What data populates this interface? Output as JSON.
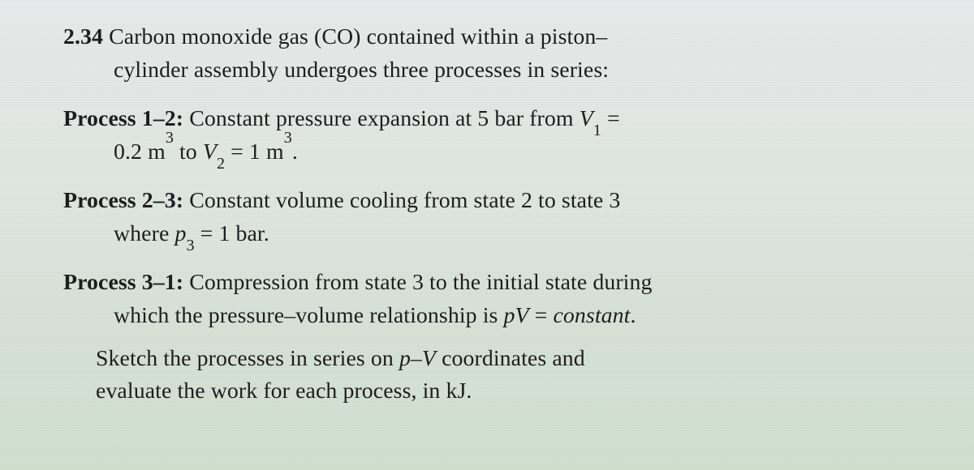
{
  "problem_number": "2.34",
  "intro_a": "Carbon monoxide gas (CO) contained within a piston–",
  "intro_b": "cylinder assembly undergoes three processes in series:",
  "p12": {
    "label": "Process 1–2:",
    "line1_a": "Constant pressure expansion at 5 bar from ",
    "V1_sym": "V",
    "V1_sub": "1",
    "eq": " = ",
    "line2_a": "0.2 m",
    "cube": "3",
    "to": " to ",
    "V2_sym": "V",
    "V2_sub": "2",
    "eq2": " = 1 m",
    "period": "."
  },
  "p23": {
    "label": "Process 2–3:",
    "line1": "Constant volume cooling from state 2 to state 3",
    "line2_a": "where ",
    "p3_sym": "p",
    "p3_sub": "3",
    "eq": " = 1 bar."
  },
  "p31": {
    "label": "Process 3–1:",
    "line1": "Compression from state 3 to the initial state during",
    "line2_a": "which the pressure–volume relationship is ",
    "pV": "pV",
    "eq": " = ",
    "const": "constant",
    "period": "."
  },
  "closing": {
    "line1_a": "Sketch the processes in series on ",
    "pv_ital": "p–V",
    "line1_b": " coordinates and",
    "line2": "evaluate the work for each process, in kJ."
  }
}
